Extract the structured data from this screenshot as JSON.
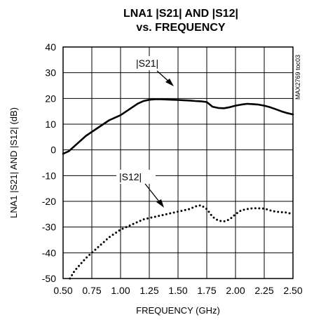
{
  "chart_data": {
    "type": "line",
    "title_line1": "LNA1 |S21| AND |S12|",
    "title_line2": "vs. FREQUENCY",
    "xlabel": "FREQUENCY (GHz)",
    "ylabel": "LNA1 |S21| AND |S12| (dB)",
    "side_note": "MAX2769 toc03",
    "xlim": [
      0.5,
      2.5
    ],
    "ylim": [
      -50,
      40
    ],
    "x_ticks": [
      "0.50",
      "0.75",
      "1.00",
      "1.25",
      "1.50",
      "1.75",
      "2.00",
      "2.25",
      "2.50"
    ],
    "y_ticks": [
      "40",
      "30",
      "20",
      "10",
      "0",
      "-10",
      "-20",
      "-30",
      "-40",
      "-50"
    ],
    "grid": true,
    "annotations": [
      {
        "text": "|S21|",
        "series": "S21"
      },
      {
        "text": "|S12|",
        "series": "S12"
      }
    ],
    "series": [
      {
        "id": "S21",
        "style": "solid",
        "x": [
          0.5,
          0.55,
          0.6,
          0.65,
          0.7,
          0.75,
          0.8,
          0.85,
          0.9,
          0.95,
          1.0,
          1.05,
          1.1,
          1.15,
          1.2,
          1.25,
          1.3,
          1.35,
          1.4,
          1.45,
          1.5,
          1.55,
          1.6,
          1.65,
          1.7,
          1.75,
          1.8,
          1.85,
          1.9,
          1.95,
          2.0,
          2.05,
          2.1,
          2.15,
          2.2,
          2.25,
          2.3,
          2.35,
          2.4,
          2.45,
          2.5
        ],
        "y": [
          -1.5,
          -0.5,
          1.5,
          3.5,
          5.5,
          7.0,
          8.5,
          10.0,
          11.5,
          12.5,
          13.5,
          15.0,
          16.5,
          18.0,
          19.0,
          19.5,
          19.7,
          19.7,
          19.6,
          19.5,
          19.4,
          19.3,
          19.2,
          19.0,
          18.9,
          18.6,
          16.8,
          16.3,
          16.2,
          16.6,
          17.2,
          17.6,
          17.9,
          17.8,
          17.6,
          17.2,
          16.6,
          15.8,
          15.0,
          14.3,
          13.8
        ]
      },
      {
        "id": "S12",
        "style": "dotted",
        "x": [
          0.56,
          0.6,
          0.65,
          0.7,
          0.75,
          0.8,
          0.85,
          0.9,
          0.95,
          1.0,
          1.05,
          1.1,
          1.15,
          1.2,
          1.25,
          1.3,
          1.35,
          1.4,
          1.45,
          1.5,
          1.55,
          1.6,
          1.65,
          1.7,
          1.75,
          1.8,
          1.85,
          1.9,
          1.95,
          2.0,
          2.05,
          2.1,
          2.15,
          2.2,
          2.25,
          2.3,
          2.35,
          2.4,
          2.45,
          2.5
        ],
        "y": [
          -50.0,
          -47.0,
          -44.5,
          -42.0,
          -40.0,
          -38.0,
          -36.0,
          -34.0,
          -32.5,
          -31.0,
          -30.0,
          -29.0,
          -28.0,
          -27.0,
          -26.5,
          -26.0,
          -25.5,
          -25.0,
          -24.5,
          -24.0,
          -23.5,
          -23.0,
          -22.0,
          -21.5,
          -23.0,
          -26.0,
          -27.5,
          -27.8,
          -27.0,
          -25.0,
          -23.5,
          -23.0,
          -22.7,
          -22.7,
          -22.8,
          -23.5,
          -24.0,
          -24.2,
          -24.4,
          -25.0
        ]
      }
    ]
  }
}
